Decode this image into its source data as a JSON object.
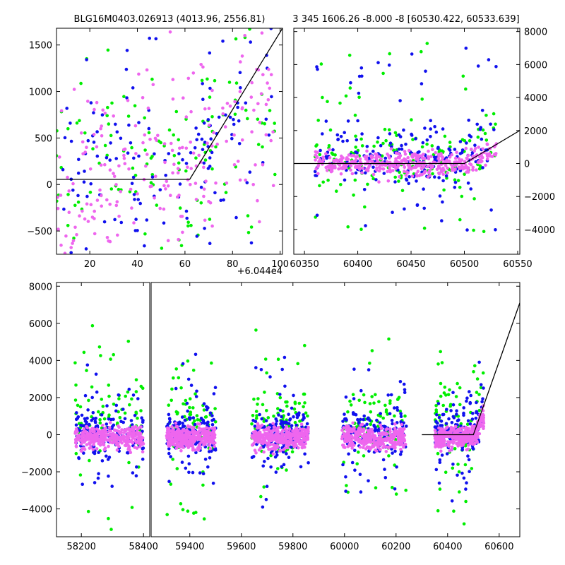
{
  "colors": {
    "green": "#00ee00",
    "blue": "#1010ee",
    "magenta": "#ee66ee",
    "model": "#000000"
  },
  "chart_data": [
    {
      "id": "zoom",
      "type": "scatter",
      "title": "BLG16M0403.026913 (4013.96, 2556.81)",
      "x_offset_label": "+6.044e4",
      "xlim": [
        6,
        101
      ],
      "ylim": [
        -750,
        1680
      ],
      "xticks": [
        "20",
        "40",
        "60",
        "80",
        "100"
      ],
      "yticks": [
        "1500",
        "1000",
        "500",
        "0",
        "−500"
      ],
      "model": {
        "x": [
          6,
          62,
          101
        ],
        "y": [
          55,
          55,
          1680
        ]
      },
      "series": [
        {
          "color": "green",
          "n": 120,
          "xmin": 6,
          "xmax": 98,
          "ymin": -700,
          "ymax": 1650,
          "base": 200
        },
        {
          "color": "blue",
          "n": 140,
          "xmin": 6,
          "xmax": 98,
          "ymin": -650,
          "ymax": 1650,
          "base": 150
        },
        {
          "color": "magenta",
          "n": 210,
          "xmin": 6,
          "xmax": 98,
          "ymin": -700,
          "ymax": 1650,
          "base": 100
        }
      ]
    },
    {
      "id": "mid",
      "type": "scatter",
      "title": "3 345 1606.26 -8.000 -8 [60530.422, 60533.639]",
      "xlim": [
        60340,
        60552
      ],
      "ylim": [
        -5500,
        8200
      ],
      "xticks": [
        "60350",
        "60400",
        "60450",
        "60500",
        "60550"
      ],
      "yticks": [
        "8000",
        "6000",
        "4000",
        "2000",
        "0",
        "−2000",
        "−4000"
      ],
      "model": {
        "x": [
          60340,
          60500,
          60552
        ],
        "y": [
          0,
          0,
          2000
        ]
      },
      "series": [
        {
          "color": "green",
          "n": 160,
          "xmin": 60360,
          "xmax": 60530,
          "ymin": -4800,
          "ymax": 8000,
          "base": 300
        },
        {
          "color": "blue",
          "n": 220,
          "xmin": 60360,
          "xmax": 60530,
          "ymin": -4200,
          "ymax": 7000,
          "base": 200
        },
        {
          "color": "magenta",
          "n": 420,
          "xmin": 60360,
          "xmax": 60530,
          "ymin": -1500,
          "ymax": 2500,
          "base": 0
        }
      ]
    },
    {
      "id": "full",
      "type": "scatter",
      "xlim": [
        58120,
        60680
      ],
      "ylim": [
        -5500,
        8200
      ],
      "break": {
        "left_xmax": 58420,
        "right_xmin": 59250
      },
      "xticks": [
        "58200",
        "58400",
        "59400",
        "59600",
        "59800",
        "60000",
        "60200",
        "60400",
        "60600"
      ],
      "yticks": [
        "8000",
        "6000",
        "4000",
        "2000",
        "0",
        "−2000",
        "−4000"
      ],
      "model": {
        "x": [
          60300,
          60500,
          60680
        ],
        "y": [
          0,
          0,
          7100
        ]
      },
      "seasons": [
        {
          "xmin": 58180,
          "xmax": 58400
        },
        {
          "xmin": 59310,
          "xmax": 59500
        },
        {
          "xmin": 59640,
          "xmax": 59860
        },
        {
          "xmin": 59990,
          "xmax": 60240
        },
        {
          "xmin": 60350,
          "xmax": 60540
        }
      ]
    }
  ]
}
